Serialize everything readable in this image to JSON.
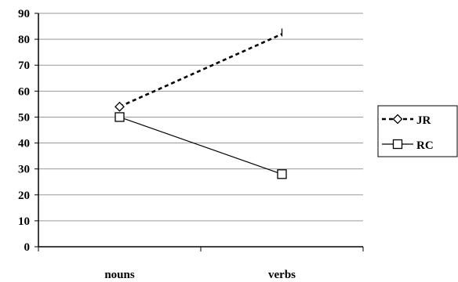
{
  "chart_data": {
    "type": "line",
    "categories": [
      "nouns",
      "verbs"
    ],
    "series": [
      {
        "name": "JR",
        "values": [
          54,
          82
        ],
        "marker": "diamond",
        "line": "dashed",
        "color": "#000000"
      },
      {
        "name": "RC",
        "values": [
          50,
          28
        ],
        "marker": "square",
        "line": "solid",
        "color": "#000000"
      }
    ],
    "title": "",
    "xlabel": "",
    "ylabel": "",
    "ylim": [
      0,
      90
    ],
    "yticks": [
      "0",
      "10",
      "20",
      "30",
      "40",
      "50",
      "60",
      "70",
      "80",
      "90"
    ],
    "grid": true,
    "legend_position": "right"
  }
}
